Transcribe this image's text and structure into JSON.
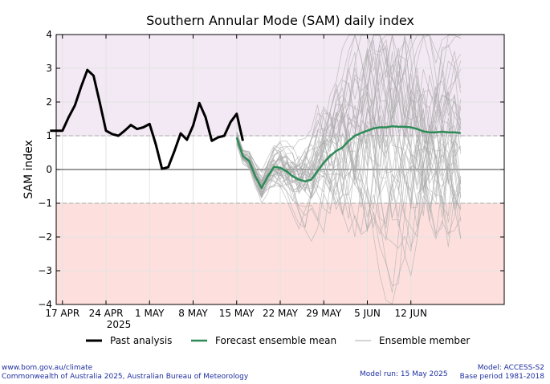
{
  "chart_data": {
    "type": "line",
    "title": "Southern Annular Mode (SAM) daily index",
    "ylabel": "SAM index",
    "xlabel": "",
    "ylim": [
      -4,
      4
    ],
    "xlim": [
      "2025-04-16",
      "2025-06-27"
    ],
    "yticks": [
      4,
      3,
      2,
      1,
      0,
      -1,
      -2,
      -3,
      -4
    ],
    "ytick_labels": [
      "4",
      "3",
      "2",
      "1",
      "0",
      "−1",
      "−2",
      "−3",
      "−4"
    ],
    "xticks": [
      {
        "date": "2025-04-17",
        "label": "17 APR"
      },
      {
        "date": "2025-04-24",
        "label": "24 APR"
      },
      {
        "date": "2025-05-01",
        "label": "1 MAY"
      },
      {
        "date": "2025-05-08",
        "label": "8 MAY"
      },
      {
        "date": "2025-05-15",
        "label": "15 MAY"
      },
      {
        "date": "2025-05-22",
        "label": "22 MAY"
      },
      {
        "date": "2025-05-29",
        "label": "29 MAY"
      },
      {
        "date": "2025-06-05",
        "label": "5 JUN"
      },
      {
        "date": "2025-06-12",
        "label": "12 JUN"
      }
    ],
    "year_label": "2025",
    "grid": true,
    "shading": [
      {
        "from": 1,
        "to": 4,
        "color": "#f3e9f4"
      },
      {
        "from": -4,
        "to": -1,
        "color": "#fde0de"
      }
    ],
    "legend_position": "bottom",
    "series": [
      {
        "name": "Past analysis",
        "color": "#000000",
        "start": "2025-04-15",
        "values": [
          1.15,
          1.15,
          1.15,
          1.55,
          1.9,
          2.45,
          2.95,
          2.78,
          1.98,
          1.15,
          1.05,
          1.0,
          1.15,
          1.32,
          1.2,
          1.25,
          1.35,
          0.75,
          0.02,
          0.07,
          0.55,
          1.07,
          0.88,
          1.3,
          1.97,
          1.55,
          0.85,
          0.95,
          1.0,
          1.4,
          1.65,
          0.85
        ]
      },
      {
        "name": "Forecast ensemble mean",
        "color": "#2e8b57",
        "start": "2025-05-15",
        "values": [
          0.95,
          0.4,
          0.25,
          -0.2,
          -0.55,
          -0.2,
          0.08,
          0.05,
          -0.05,
          -0.2,
          -0.3,
          -0.35,
          -0.3,
          -0.05,
          0.2,
          0.4,
          0.55,
          0.65,
          0.85,
          1.0,
          1.08,
          1.15,
          1.22,
          1.25,
          1.25,
          1.28,
          1.27,
          1.27,
          1.25,
          1.2,
          1.13,
          1.1,
          1.1,
          1.12,
          1.1,
          1.1,
          1.08
        ]
      },
      {
        "name": "Ensemble member",
        "color": "#aaaaaa",
        "start": "2025-05-15",
        "members": 40
      }
    ]
  },
  "footer": {
    "left_line1": "www.bom.gov.au/climate",
    "left_line2": "Commonwealth of Australia 2025, Australian Bureau of Meteorology",
    "model_run": "Model run: 15 May 2025",
    "model": "Model: ACCESS-S2",
    "base_period": "Base period 1981-2018"
  }
}
